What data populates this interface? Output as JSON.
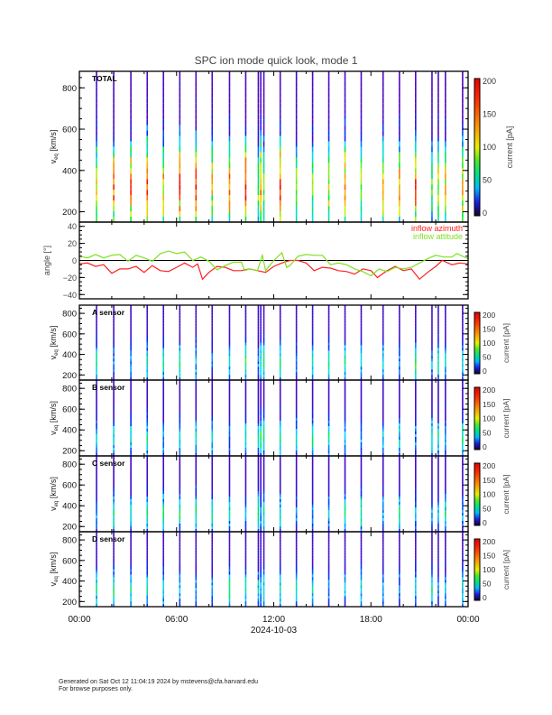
{
  "chart_data": {
    "title": "SPC ion mode quick look, mode 1",
    "xlabel": "2024-10-03",
    "x_tick_labels": [
      "00:00",
      "06:00",
      "12:00",
      "18:00",
      "00:00"
    ],
    "x_range_hours": [
      0,
      24
    ],
    "spectrum_times_hours": [
      1.06,
      2.12,
      3.18,
      4.19,
      5.19,
      6.2,
      7.2,
      8.2,
      9.27,
      10.27,
      11.05,
      11.2,
      11.39,
      12.4,
      13.4,
      14.4,
      15.4,
      16.4,
      17.4,
      18.75,
      19.76,
      20.76,
      21.77,
      22.16,
      22.6,
      23.66
    ],
    "panels": [
      {
        "type": "heatmap",
        "label": "TOTAL",
        "ylabel": "v",
        "ylabel_sub": "eq",
        "ylabel_unit": "[km/s]",
        "ylim": [
          150,
          880
        ],
        "yticks": [
          200,
          400,
          600,
          800
        ],
        "colorbar": {
          "label": "current [pA]",
          "range": [
            0,
            200
          ],
          "ticks": [
            0,
            50,
            100,
            150,
            200
          ]
        }
      },
      {
        "type": "line",
        "ylabel": "angle [°]",
        "ylim": [
          -45,
          45
        ],
        "yticks": [
          -40,
          -20,
          0,
          20,
          40
        ],
        "series": [
          {
            "name": "inflow azimuth",
            "color": "#ff2020",
            "x": [
              0,
              0.5,
              1,
              1.5,
              2,
              2.5,
              3,
              3.5,
              4,
              4.5,
              5,
              5.5,
              6,
              6.5,
              7,
              7.3,
              7.6,
              8,
              8.5,
              9,
              9.5,
              10,
              10.5,
              11,
              11.5,
              12,
              12.5,
              13,
              13.5,
              14,
              14.5,
              15,
              15.5,
              16,
              16.5,
              17,
              17.5,
              18,
              18.4,
              19,
              19.5,
              20,
              20.5,
              21,
              21.5,
              22,
              22.4,
              23,
              23.5,
              24
            ],
            "y": [
              -4,
              -3,
              -7,
              -5,
              -15,
              -10,
              -10,
              -7,
              -14,
              -6,
              -12,
              -13,
              -8,
              -3,
              -8,
              -4,
              -22,
              -14,
              -7,
              -8,
              -12,
              -12,
              -10,
              -12,
              -14,
              -7,
              -3,
              0,
              0,
              -3,
              -12,
              -8,
              -9,
              -12,
              -13,
              -16,
              -10,
              -12,
              -20,
              -12,
              -7,
              -12,
              -10,
              -22,
              -14,
              -7,
              0,
              -5,
              -3,
              -4
            ]
          },
          {
            "name": "inflow attitude",
            "color": "#80e020",
            "x": [
              0,
              0.5,
              1,
              1.5,
              2,
              2.5,
              3,
              3.5,
              4,
              4.5,
              5,
              5.5,
              6,
              6.5,
              7,
              7.5,
              8,
              8.5,
              9,
              9.5,
              10,
              10.2,
              10.5,
              11,
              11.3,
              11.5,
              12,
              12.5,
              12.8,
              13,
              13.5,
              14,
              14.5,
              15,
              15.5,
              16,
              16.5,
              17,
              17.5,
              18,
              18.5,
              19,
              19.5,
              20,
              20.5,
              21,
              21.5,
              22,
              22.5,
              23,
              23.3,
              24
            ],
            "y": [
              5,
              3,
              7,
              3,
              6,
              7,
              -1,
              6,
              3,
              -1,
              8,
              11,
              8,
              10,
              0,
              4,
              -1,
              -11,
              -6,
              -2,
              -2,
              -12,
              -10,
              -12,
              6,
              -12,
              0,
              9,
              -8,
              -6,
              5,
              7,
              6,
              6,
              -5,
              -3,
              -5,
              -10,
              -13,
              -18,
              -10,
              -13,
              -8,
              -10,
              -8,
              -3,
              2,
              6,
              4,
              4,
              8,
              2
            ]
          }
        ]
      },
      {
        "type": "heatmap",
        "label": "A sensor",
        "ylabel": "v",
        "ylabel_sub": "eq",
        "ylabel_unit": "[km/s]",
        "ylim": [
          150,
          880
        ],
        "yticks": [
          200,
          400,
          600,
          800
        ],
        "colorbar": {
          "label": "current [pA]",
          "range": [
            0,
            200
          ],
          "ticks": [
            0,
            50,
            100,
            150,
            200
          ]
        }
      },
      {
        "type": "heatmap",
        "label": "B sensor",
        "ylabel": "v",
        "ylabel_sub": "eq",
        "ylabel_unit": "[km/s]",
        "ylim": [
          150,
          880
        ],
        "yticks": [
          200,
          400,
          600,
          800
        ],
        "colorbar": {
          "label": "current [pA]",
          "range": [
            0,
            200
          ],
          "ticks": [
            0,
            50,
            100,
            150,
            200
          ]
        }
      },
      {
        "type": "heatmap",
        "label": "C sensor",
        "ylabel": "v",
        "ylabel_sub": "eq",
        "ylabel_unit": "[km/s]",
        "ylim": [
          150,
          880
        ],
        "yticks": [
          200,
          400,
          600,
          800
        ],
        "colorbar": {
          "label": "current [pA]",
          "range": [
            0,
            200
          ],
          "ticks": [
            0,
            50,
            100,
            150,
            200
          ]
        }
      },
      {
        "type": "heatmap",
        "label": "D sensor",
        "ylabel": "v",
        "ylabel_sub": "eq",
        "ylabel_unit": "[km/s]",
        "ylim": [
          150,
          880
        ],
        "yticks": [
          200,
          400,
          600,
          800
        ],
        "colorbar": {
          "label": "current [pA]",
          "range": [
            0,
            200
          ],
          "ticks": [
            0,
            50,
            100,
            150,
            200
          ]
        }
      }
    ]
  },
  "footer": {
    "line1": "Generated on Sat Oct 12 11:04:19 2024 by mstevens@cfa.harvard.edu",
    "line2": "For browse purposes only."
  }
}
